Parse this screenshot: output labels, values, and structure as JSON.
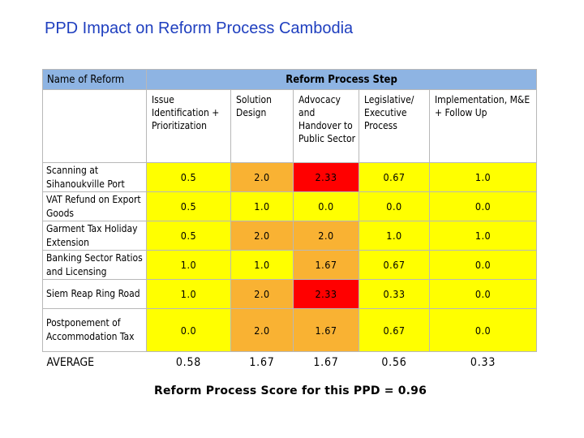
{
  "title": "PPD Impact on Reform Process Cambodia",
  "header": {
    "name_col": "Name of Reform",
    "step_col": "Reform Process Step"
  },
  "steps": [
    "Issue Identification + Prioritization",
    "Solution Design",
    "Advocacy and Handover to Public Sector",
    "Legislative/ Executive Process",
    "Implementation, M&E + Follow Up"
  ],
  "rows": [
    {
      "name": "Scanning at Sihanoukville Port",
      "values": [
        "0.5",
        "2.0",
        "2.33",
        "0.67",
        "1.0"
      ],
      "colors": [
        "y",
        "o",
        "r",
        "y",
        "y"
      ]
    },
    {
      "name": "VAT Refund on Export Goods",
      "values": [
        "0.5",
        "1.0",
        "0.0",
        "0.0",
        "0.0"
      ],
      "colors": [
        "y",
        "y",
        "y",
        "y",
        "y"
      ]
    },
    {
      "name": "Garment Tax Holiday Extension",
      "values": [
        "0.5",
        "2.0",
        "2.0",
        "1.0",
        "1.0"
      ],
      "colors": [
        "y",
        "o",
        "o",
        "y",
        "y"
      ]
    },
    {
      "name": "Banking Sector Ratios and Licensing",
      "values": [
        "1.0",
        "1.0",
        "1.67",
        "0.67",
        "0.0"
      ],
      "colors": [
        "y",
        "y",
        "o",
        "y",
        "y"
      ]
    },
    {
      "name": "Siem Reap Ring Road",
      "values": [
        "1.0",
        "2.0",
        "2.33",
        "0.33",
        "0.0"
      ],
      "colors": [
        "y",
        "o",
        "r",
        "y",
        "y"
      ]
    },
    {
      "name": "Postponement of Accommodation Tax",
      "values": [
        "0.0",
        "2.0",
        "1.67",
        "0.67",
        "0.0"
      ],
      "colors": [
        "y",
        "o",
        "o",
        "y",
        "y"
      ]
    }
  ],
  "average": {
    "label": "AVERAGE",
    "values": [
      "0.58",
      "1.67",
      "1.67",
      "0.56",
      "0.33"
    ]
  },
  "score_text": "Reform Process Score for this PPD = 0.96",
  "colors": {
    "y": "#ffff00",
    "o": "#f9b233",
    "r": "#ff0000",
    "header_bg": "#8eb4e3",
    "title": "#1f3fbf"
  }
}
